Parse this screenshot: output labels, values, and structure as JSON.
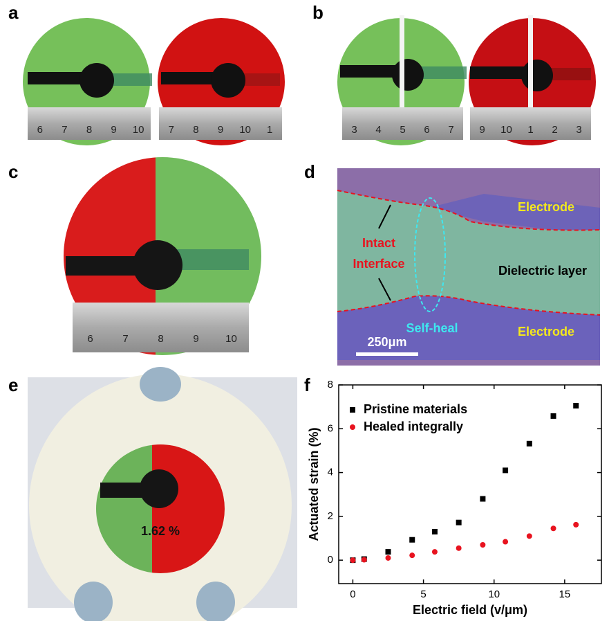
{
  "panels": {
    "a": {
      "label": "a",
      "ruler_left": [
        "6",
        "7",
        "8",
        "9",
        "10"
      ],
      "ruler_right": [
        "7",
        "8",
        "9",
        "10",
        "1"
      ]
    },
    "b": {
      "label": "b",
      "ruler_left": [
        "3",
        "4",
        "5",
        "6",
        "7"
      ],
      "ruler_right": [
        "9",
        "10",
        "1",
        "2",
        "3"
      ]
    },
    "c": {
      "label": "c",
      "ruler": [
        "6",
        "7",
        "8",
        "9",
        "10"
      ]
    },
    "d": {
      "label": "d",
      "electrode_top": "Electrode",
      "electrode_bottom": "Electrode",
      "intact": [
        "Intact",
        "Interface"
      ],
      "dielectric": "Dielectric layer",
      "self_heal": "Self-heal",
      "scale_bar": "250μm"
    },
    "e": {
      "label": "e",
      "strain": "1.62 %"
    },
    "f": {
      "label": "f"
    }
  },
  "chart_data": {
    "type": "scatter",
    "x_label": "Electric field (v/μm)",
    "y_label": "Actuated strain (%)",
    "x": [
      0,
      0.8,
      2.5,
      4.2,
      5.8,
      7.5,
      9.2,
      10.8,
      12.5,
      14.2,
      15.8
    ],
    "series": [
      {
        "name": "Pristine materials",
        "color": "#000000",
        "marker": "square",
        "values": [
          0,
          0.05,
          0.38,
          0.93,
          1.3,
          1.72,
          2.8,
          4.1,
          5.32,
          6.58,
          7.05
        ]
      },
      {
        "name": "Healed integrally",
        "color": "#e8131f",
        "marker": "circle",
        "values": [
          0,
          0.02,
          0.1,
          0.22,
          0.38,
          0.55,
          0.7,
          0.84,
          1.1,
          1.45,
          1.62
        ]
      }
    ],
    "xlim": [
      -1,
      17.6
    ],
    "ylim": [
      -1.07,
      8
    ],
    "xticks": [
      0,
      5,
      10,
      15
    ],
    "yticks": [
      0,
      2,
      4,
      6,
      8
    ],
    "legend": "upper-left",
    "grid": false
  }
}
